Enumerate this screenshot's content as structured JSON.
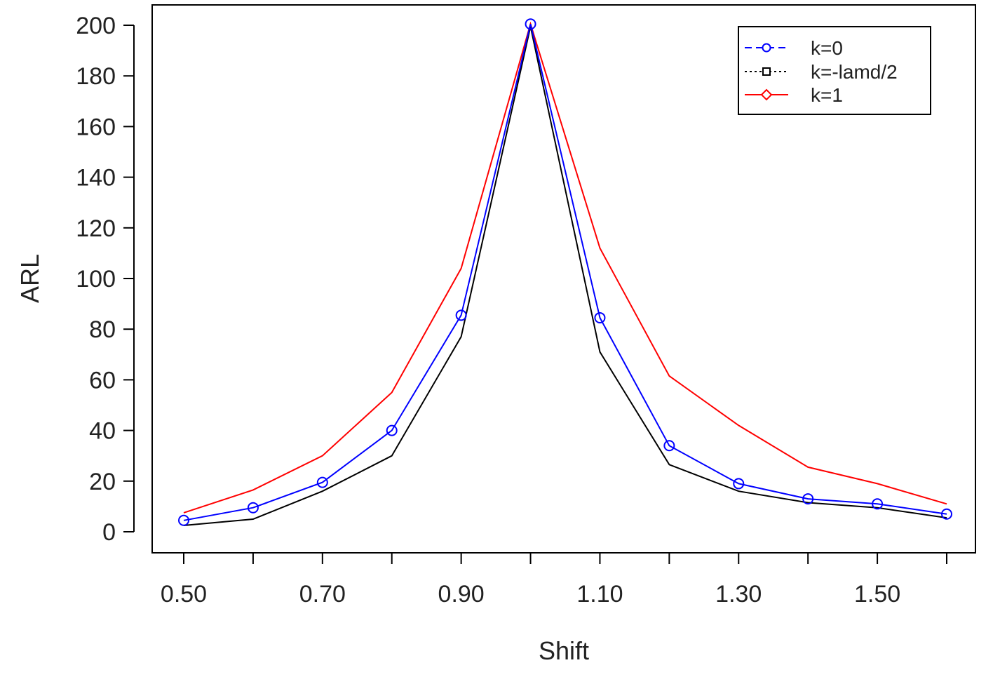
{
  "chart_data": {
    "type": "line",
    "title": "",
    "xlabel": "Shift",
    "ylabel": "ARL",
    "x": [
      0.5,
      0.6,
      0.7,
      0.8,
      0.9,
      1.0,
      1.1,
      1.2,
      1.3,
      1.4,
      1.5,
      1.6
    ],
    "xlim": [
      0.5,
      1.6
    ],
    "ylim": [
      0,
      200
    ],
    "x_ticks": [
      0.5,
      0.7,
      0.9,
      1.1,
      1.3,
      1.5
    ],
    "x_tick_labels": [
      "0.50",
      "0.70",
      "0.90",
      "1.10",
      "1.30",
      "1.50"
    ],
    "y_ticks": [
      0,
      20,
      40,
      60,
      80,
      100,
      120,
      140,
      160,
      180,
      200
    ],
    "y_tick_labels": [
      "0",
      "20",
      "40",
      "60",
      "80",
      "100",
      "120",
      "140",
      "160",
      "180",
      "200"
    ],
    "grid": false,
    "legend_position": "top-right",
    "series": [
      {
        "name": "k=0",
        "color": "#0000ff",
        "legend_marker": "circle",
        "legend_line": "dashed",
        "values": [
          4.5,
          9.5,
          19.5,
          40,
          85.5,
          200.5,
          84.5,
          34,
          19,
          13,
          11,
          7
        ],
        "markers": true
      },
      {
        "name": "k=-lamd/2",
        "color": "#000000",
        "legend_marker": "square",
        "legend_line": "dotted",
        "values": [
          2.5,
          5,
          16,
          30,
          77,
          199.5,
          71,
          26.5,
          16,
          11.5,
          9.5,
          5.5
        ],
        "markers": false
      },
      {
        "name": "k=1",
        "color": "#ff0000",
        "legend_marker": "diamond",
        "legend_line": "solid",
        "values": [
          7.5,
          16.5,
          30,
          55,
          104,
          200.5,
          112,
          61.5,
          42,
          25.5,
          19,
          11
        ],
        "markers": false
      }
    ]
  }
}
